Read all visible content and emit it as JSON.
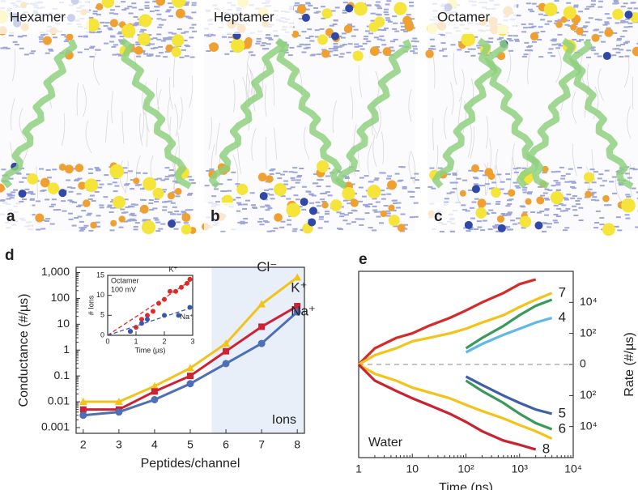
{
  "panels": [
    {
      "letter": "a",
      "label": "Hexamer"
    },
    {
      "letter": "b",
      "label": "Heptamer"
    },
    {
      "letter": "c",
      "label": "Octamer"
    }
  ],
  "chart_data": [
    {
      "type": "line",
      "panel": "d",
      "x": [
        2,
        3,
        4,
        5,
        6,
        7,
        8
      ],
      "xlim": [
        1.8,
        8.2
      ],
      "xticks": [
        2,
        3,
        4,
        5,
        6,
        7,
        8
      ],
      "ylim": [
        0.0006,
        1600
      ],
      "yscale": "log",
      "yticks": [
        0.001,
        0.01,
        0.1,
        1,
        10,
        100,
        {
          "value": 1000,
          "label": "1,000"
        }
      ],
      "xlabel": "Peptides/channel",
      "ylabel": "Conductance (#/µs)",
      "highlight": {
        "x": [
          5.6,
          8.2
        ],
        "label": "Ions",
        "color": "#e8eff8"
      },
      "series": [
        {
          "name": "Cl⁻",
          "color": "#f2c318",
          "marker": "triangle",
          "values": [
            0.01,
            0.01,
            0.04,
            0.2,
            1.8,
            60,
            650
          ]
        },
        {
          "name": "K⁺",
          "color": "#cc2233",
          "marker": "square",
          "values": [
            0.005,
            0.005,
            0.025,
            0.1,
            0.9,
            8,
            50
          ]
        },
        {
          "name": "Na⁺",
          "color": "#4d6fb6",
          "marker": "circle",
          "values": [
            0.003,
            0.004,
            0.012,
            0.05,
            0.3,
            1.8,
            30
          ]
        }
      ]
    },
    {
      "type": "scatter",
      "panel": "inset",
      "title": [
        "Octamer",
        "100 mV"
      ],
      "xlim": [
        0,
        3
      ],
      "xticks": [
        0,
        1,
        2,
        3
      ],
      "ylim": [
        0,
        15
      ],
      "yticks": [
        0,
        5,
        10,
        15
      ],
      "xlabel": "Time (µs)",
      "ylabel": "# Ions",
      "series": [
        {
          "name": "K⁺",
          "color": "#dd2a2a",
          "x": [
            0.8,
            1.0,
            1.2,
            1.4,
            1.6,
            1.8,
            2.0,
            2.2,
            2.4,
            2.6,
            2.8,
            2.9
          ],
          "values": [
            1,
            2,
            4,
            5,
            6,
            8,
            9,
            11,
            11,
            12,
            13,
            14
          ],
          "fit": {
            "x": [
              0,
              3
            ],
            "y": [
              0,
              14
            ]
          }
        },
        {
          "name": "Na⁺",
          "color": "#3a57b0",
          "x": [
            0.8,
            1.2,
            1.4,
            2.0,
            2.5,
            2.9
          ],
          "values": [
            1,
            3,
            4,
            5,
            5,
            7
          ],
          "fit": {
            "x": [
              0,
              3
            ],
            "y": [
              0,
              7
            ]
          }
        }
      ]
    },
    {
      "type": "line",
      "panel": "e",
      "x": [
        1,
        2,
        5,
        10,
        20,
        50,
        100,
        200,
        500,
        1000,
        2000,
        4000
      ],
      "xlim": [
        1,
        10000
      ],
      "xscale": "log",
      "xticks": [
        1,
        10,
        {
          "value": 100,
          "label": "10²"
        },
        {
          "value": 1000,
          "label": "10³"
        },
        {
          "value": 10000,
          "label": "10⁴"
        }
      ],
      "ylim": [
        -1000000,
        1000000
      ],
      "yscale": "symlog",
      "y_axis_side": "right",
      "zero_line": true,
      "yticks": [
        {
          "value": 10000,
          "label": "10⁴"
        },
        {
          "value": 100,
          "label": "10²"
        },
        0,
        {
          "value": -100,
          "label": "10²"
        },
        {
          "value": -10000,
          "label": "10⁴"
        }
      ],
      "xlabel": "Time (ns)",
      "ylabel": "Rate (#/µs)",
      "annotation": "Water",
      "series": [
        {
          "color": "#d42a2a",
          "values": [
            0,
            10,
            50,
            100,
            300,
            1000,
            3000,
            10000,
            40000,
            150000,
            300000,
            null
          ]
        },
        {
          "name": "7",
          "color": "#f2c318",
          "values": [
            0,
            3,
            10,
            30,
            50,
            100,
            200,
            500,
            1500,
            5000,
            15000,
            40000
          ]
        },
        {
          "color": "#3a9a5a",
          "values": [
            null,
            null,
            null,
            null,
            null,
            null,
            10,
            50,
            300,
            1500,
            6000,
            15000
          ]
        },
        {
          "name": "4",
          "color": "#5fb8e8",
          "values": [
            null,
            null,
            null,
            null,
            null,
            null,
            5,
            20,
            80,
            200,
            500,
            1000
          ]
        },
        {
          "name": "5",
          "color": "#3f5fa8",
          "values": [
            null,
            null,
            null,
            null,
            null,
            null,
            -5,
            -20,
            -100,
            -300,
            -800,
            -1500
          ]
        },
        {
          "name": "6",
          "color": "#3a9a5a",
          "values": [
            null,
            null,
            null,
            null,
            null,
            null,
            -10,
            -50,
            -300,
            -1500,
            -6000,
            -15000
          ]
        },
        {
          "color": "#f2c318",
          "values": [
            0,
            -3,
            -10,
            -30,
            -60,
            -150,
            -400,
            -1000,
            -3000,
            -8000,
            -20000,
            -60000
          ]
        },
        {
          "name": "8",
          "color": "#c8232f",
          "values": [
            0,
            -10,
            -50,
            -150,
            -400,
            -1500,
            -5000,
            -20000,
            -80000,
            -150000,
            -300000,
            null
          ]
        }
      ]
    }
  ]
}
